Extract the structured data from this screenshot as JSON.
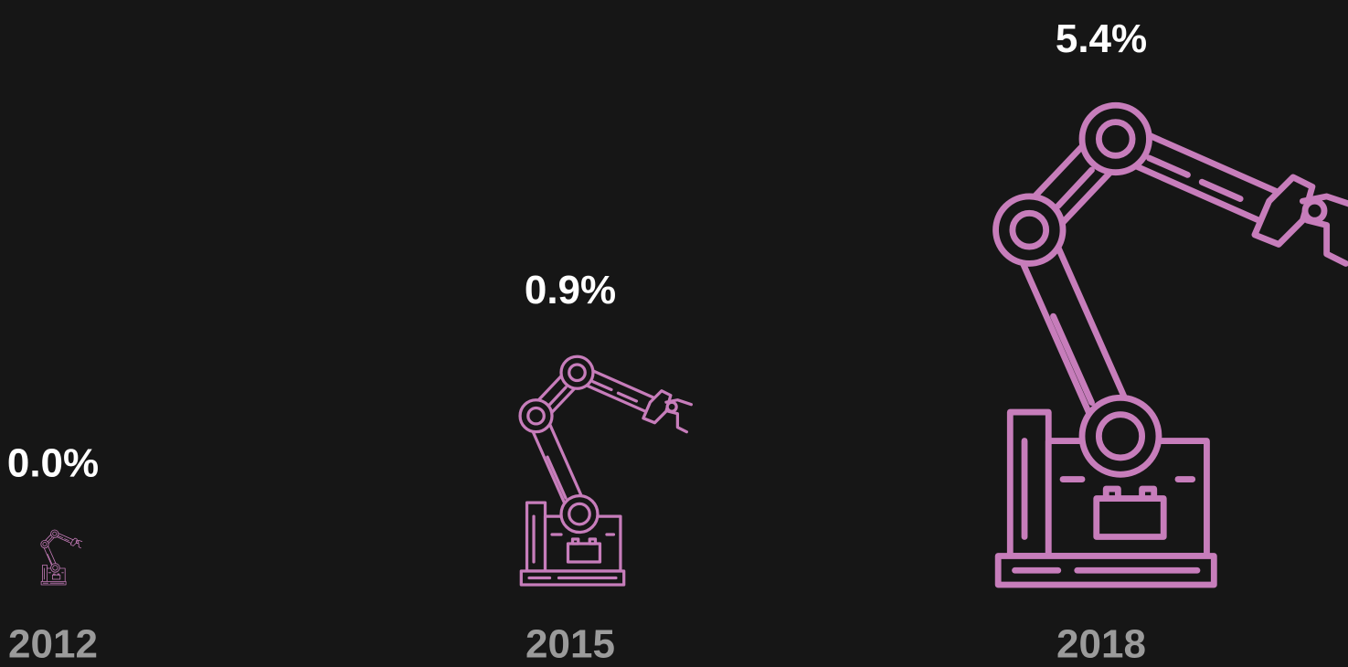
{
  "chart_data": {
    "type": "pictogram",
    "categories": [
      "2012",
      "2015",
      "2018"
    ],
    "values": [
      0.0,
      0.9,
      5.4
    ],
    "value_labels": [
      "0.0%",
      "0.9%",
      "5.4%"
    ],
    "color": "#c77dbb"
  }
}
